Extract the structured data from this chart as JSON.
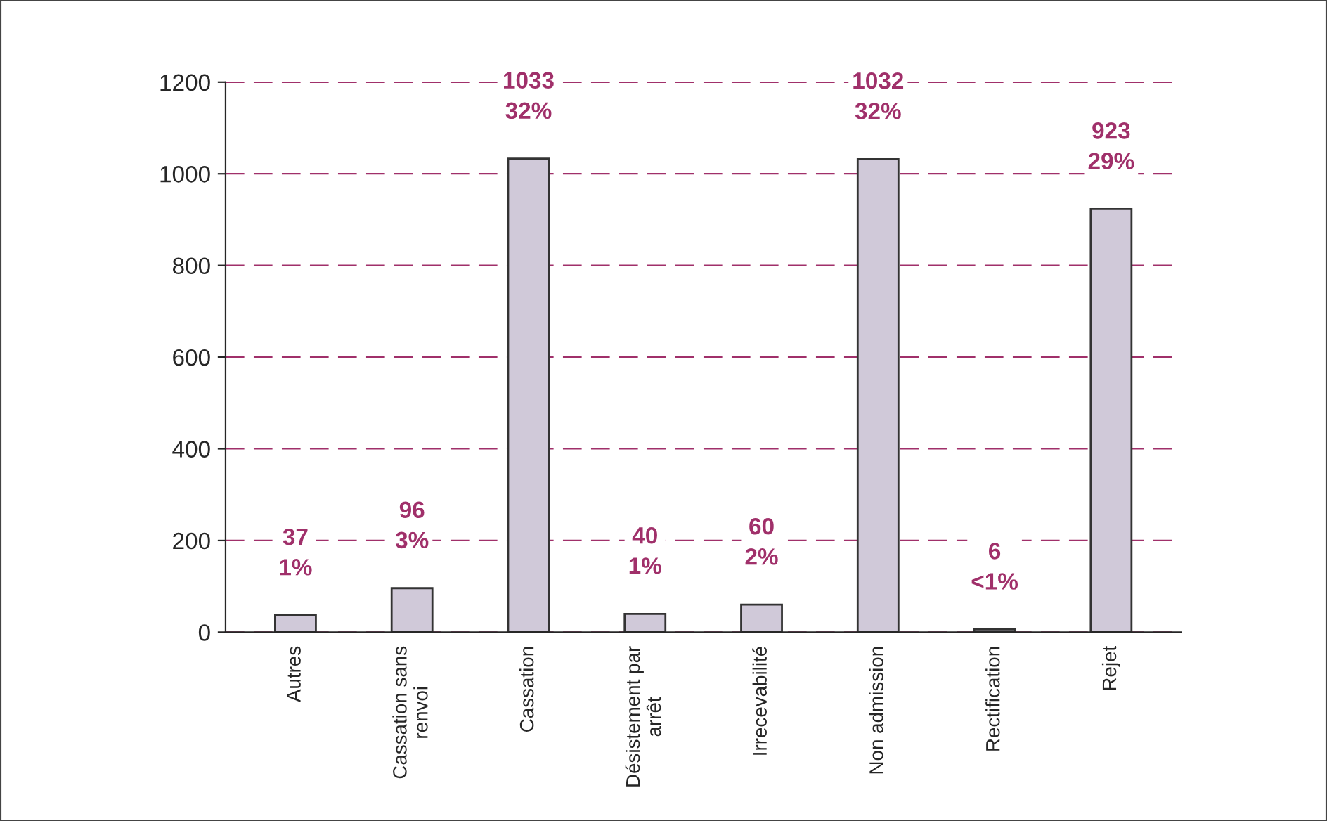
{
  "chart_data": {
    "type": "bar",
    "categories": [
      "Autres",
      "Cassation sans\nrenvoi",
      "Cassation",
      "Désistement par\narrêt",
      "Irrecevabilité",
      "Non admission",
      "Rectification",
      "Rejet"
    ],
    "values": [
      37,
      96,
      1033,
      40,
      60,
      1032,
      6,
      923
    ],
    "value_labels": [
      "37\n1%",
      "96\n3%",
      "1033\n32%",
      "40\n1%",
      "60\n2%",
      "1032\n32%",
      "6\n<1%",
      "923\n29%"
    ],
    "color": "#cfc6dc",
    "ylim": [
      0,
      1200
    ],
    "yticks": [
      0,
      200,
      400,
      600,
      800,
      1000,
      1200
    ],
    "grid": "y",
    "legend": false
  }
}
